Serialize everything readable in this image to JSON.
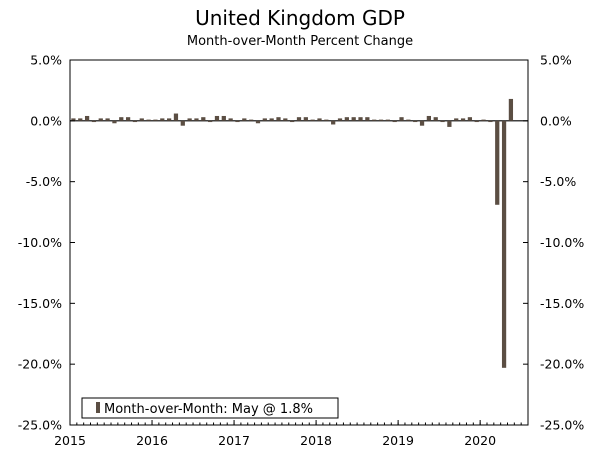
{
  "chart_data": {
    "type": "bar",
    "title": "United Kingdom GDP",
    "subtitle": "Month-over-Month Percent Change",
    "xlabel": "",
    "ylabel": "",
    "ylim": [
      -25,
      5
    ],
    "y_ticks": [
      5,
      0,
      -5,
      -10,
      -15,
      -20,
      -25
    ],
    "y_tick_labels": [
      "5.0%",
      "0.0%",
      "-5.0%",
      "-10.0%",
      "-15.0%",
      "-20.0%",
      "-25.0%"
    ],
    "x_range": [
      "2015-01",
      "2020-08"
    ],
    "x_tick_labels": [
      "2015",
      "2016",
      "2017",
      "2018",
      "2019",
      "2020"
    ],
    "grid": false,
    "legend_position": "bottom-left",
    "bar_color": "#5b4e43",
    "series": [
      {
        "name": "Month-over-Month: May @ 1.8%",
        "x": [
          "2015-01",
          "2015-02",
          "2015-03",
          "2015-04",
          "2015-05",
          "2015-06",
          "2015-07",
          "2015-08",
          "2015-09",
          "2015-10",
          "2015-11",
          "2015-12",
          "2016-01",
          "2016-02",
          "2016-03",
          "2016-04",
          "2016-05",
          "2016-06",
          "2016-07",
          "2016-08",
          "2016-09",
          "2016-10",
          "2016-11",
          "2016-12",
          "2017-01",
          "2017-02",
          "2017-03",
          "2017-04",
          "2017-05",
          "2017-06",
          "2017-07",
          "2017-08",
          "2017-09",
          "2017-10",
          "2017-11",
          "2017-12",
          "2018-01",
          "2018-02",
          "2018-03",
          "2018-04",
          "2018-05",
          "2018-06",
          "2018-07",
          "2018-08",
          "2018-09",
          "2018-10",
          "2018-11",
          "2018-12",
          "2019-01",
          "2019-02",
          "2019-03",
          "2019-04",
          "2019-05",
          "2019-06",
          "2019-07",
          "2019-08",
          "2019-09",
          "2019-10",
          "2019-11",
          "2019-12",
          "2020-01",
          "2020-02",
          "2020-03",
          "2020-04",
          "2020-05"
        ],
        "values": [
          0.2,
          0.2,
          0.4,
          -0.1,
          0.2,
          0.2,
          -0.2,
          0.3,
          0.3,
          -0.1,
          0.2,
          0.1,
          0.1,
          0.2,
          0.2,
          0.6,
          -0.4,
          0.2,
          0.2,
          0.3,
          -0.1,
          0.4,
          0.4,
          0.2,
          -0.1,
          0.2,
          0.1,
          -0.2,
          0.2,
          0.2,
          0.3,
          0.2,
          -0.1,
          0.3,
          0.3,
          0.1,
          0.2,
          0.1,
          -0.3,
          0.2,
          0.3,
          0.3,
          0.3,
          0.3,
          0.1,
          0.1,
          0.1,
          -0.1,
          0.3,
          0.1,
          -0.1,
          -0.4,
          0.4,
          0.3,
          -0.1,
          -0.5,
          0.2,
          0.2,
          0.3,
          -0.1,
          0.1,
          -0.1,
          -6.9,
          -20.3,
          1.8
        ]
      }
    ]
  }
}
